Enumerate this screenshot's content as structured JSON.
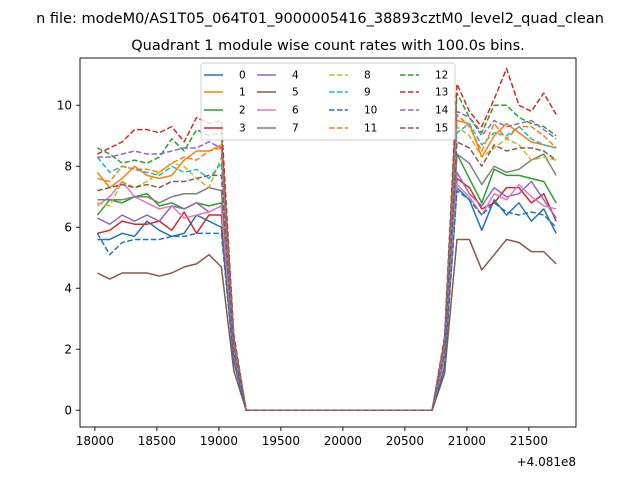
{
  "chart_data": {
    "type": "line",
    "suptitle": "n file: modeM0/AS1T05_064T01_9000005416_38893cztM0_level2_quad_clean",
    "title": "Quadrant 1 module wise count rates with 100.0s bins.",
    "xlabel": "",
    "ylabel": "",
    "x_offset_label": "+4.081e8",
    "xlim": [
      17880,
      21880
    ],
    "ylim": [
      -0.55,
      11.55
    ],
    "x_ticks": [
      18000,
      18500,
      19000,
      19500,
      20000,
      20500,
      21000,
      21500
    ],
    "x_tick_labels": [
      "18000",
      "18500",
      "19000",
      "19500",
      "20000",
      "20500",
      "21000",
      "21500"
    ],
    "y_ticks": [
      0,
      2,
      4,
      6,
      8,
      10
    ],
    "y_tick_labels": [
      "0",
      "2",
      "4",
      "6",
      "8",
      "10"
    ],
    "grid": false,
    "legend_placement": "top-center",
    "legend_ncol": 4,
    "x": [
      18020,
      18120,
      18220,
      18320,
      18420,
      18520,
      18620,
      18720,
      18820,
      18920,
      19020,
      19120,
      19220,
      19320,
      19420,
      19520,
      19620,
      19720,
      19820,
      19920,
      20020,
      20120,
      20220,
      20320,
      20420,
      20520,
      20620,
      20720,
      20820,
      20920,
      21020,
      21120,
      21220,
      21320,
      21420,
      21520,
      21620,
      21720
    ],
    "series": [
      {
        "name": "0",
        "color": "#1f77b4",
        "dash": "solid",
        "values": [
          5.6,
          5.6,
          5.8,
          5.7,
          6.2,
          5.9,
          5.7,
          5.8,
          6.4,
          6.2,
          6.0,
          1.6,
          0,
          0,
          0,
          0,
          0,
          0,
          0,
          0,
          0,
          0,
          0,
          0,
          0,
          0,
          0,
          0,
          1.4,
          7.3,
          6.9,
          5.9,
          6.9,
          6.4,
          6.8,
          6.2,
          6.6,
          5.8
        ]
      },
      {
        "name": "1",
        "color": "#ff7f0e",
        "dash": "solid",
        "values": [
          7.8,
          7.3,
          7.6,
          8.0,
          7.7,
          7.6,
          7.7,
          8.2,
          8.5,
          8.5,
          8.7,
          2.2,
          0,
          0,
          0,
          0,
          0,
          0,
          0,
          0,
          0,
          0,
          0,
          0,
          0,
          0,
          0,
          0,
          2.0,
          9.5,
          9.4,
          8.3,
          9.0,
          9.4,
          9.1,
          8.8,
          8.7,
          8.6
        ]
      },
      {
        "name": "2",
        "color": "#2ca02c",
        "dash": "solid",
        "values": [
          6.4,
          6.9,
          6.8,
          7.0,
          7.1,
          6.7,
          6.8,
          6.6,
          6.8,
          6.7,
          6.8,
          1.8,
          0,
          0,
          0,
          0,
          0,
          0,
          0,
          0,
          0,
          0,
          0,
          0,
          0,
          0,
          0,
          0,
          1.7,
          8.4,
          7.6,
          6.8,
          7.9,
          7.7,
          7.7,
          7.6,
          7.5,
          6.8
        ]
      },
      {
        "name": "3",
        "color": "#d62728",
        "dash": "solid",
        "values": [
          5.8,
          5.9,
          6.2,
          6.1,
          6.1,
          6.2,
          5.9,
          6.5,
          5.8,
          6.4,
          6.4,
          1.7,
          0,
          0,
          0,
          0,
          0,
          0,
          0,
          0,
          0,
          0,
          0,
          0,
          0,
          0,
          0,
          0,
          1.6,
          7.6,
          7.3,
          6.6,
          6.8,
          7.3,
          7.3,
          6.8,
          7.1,
          6.2
        ]
      },
      {
        "name": "4",
        "color": "#9467bd",
        "dash": "solid",
        "values": [
          6.3,
          6.1,
          6.4,
          6.2,
          6.4,
          6.2,
          6.7,
          6.6,
          6.8,
          6.5,
          6.7,
          1.8,
          0,
          0,
          0,
          0,
          0,
          0,
          0,
          0,
          0,
          0,
          0,
          0,
          0,
          0,
          0,
          0,
          1.6,
          7.8,
          7.1,
          6.7,
          7.3,
          7.0,
          7.1,
          7.5,
          6.9,
          6.3
        ]
      },
      {
        "name": "5",
        "color": "#8c564b",
        "dash": "solid",
        "values": [
          4.5,
          4.3,
          4.5,
          4.5,
          4.5,
          4.4,
          4.5,
          4.7,
          4.8,
          5.1,
          4.7,
          1.3,
          0,
          0,
          0,
          0,
          0,
          0,
          0,
          0,
          0,
          0,
          0,
          0,
          0,
          0,
          0,
          0,
          1.2,
          5.6,
          5.6,
          4.6,
          5.1,
          5.6,
          5.5,
          5.2,
          5.2,
          4.8
        ]
      },
      {
        "name": "6",
        "color": "#e377c2",
        "dash": "solid",
        "values": [
          6.7,
          7.0,
          7.5,
          7.0,
          6.8,
          6.6,
          6.7,
          6.3,
          6.4,
          6.5,
          6.7,
          1.8,
          0,
          0,
          0,
          0,
          0,
          0,
          0,
          0,
          0,
          0,
          0,
          0,
          0,
          0,
          0,
          0,
          1.6,
          7.4,
          7.0,
          6.4,
          7.1,
          6.9,
          7.4,
          7.0,
          6.7,
          6.6
        ]
      },
      {
        "name": "7",
        "color": "#7f7f7f",
        "dash": "solid",
        "values": [
          6.9,
          6.9,
          6.9,
          7.0,
          7.0,
          6.8,
          7.0,
          7.1,
          7.1,
          7.3,
          7.2,
          1.9,
          0,
          0,
          0,
          0,
          0,
          0,
          0,
          0,
          0,
          0,
          0,
          0,
          0,
          0,
          0,
          0,
          1.8,
          8.4,
          8.1,
          7.4,
          8.0,
          7.8,
          7.9,
          8.2,
          8.4,
          7.7
        ]
      },
      {
        "name": "8",
        "color": "#bcbd22",
        "dash": "dashed",
        "values": [
          6.8,
          6.7,
          7.5,
          7.3,
          7.5,
          7.8,
          8.1,
          8.0,
          7.6,
          7.3,
          8.3,
          2.2,
          0,
          0,
          0,
          0,
          0,
          0,
          0,
          0,
          0,
          0,
          0,
          0,
          0,
          0,
          0,
          0,
          2.0,
          9.3,
          9.0,
          8.3,
          8.6,
          8.9,
          8.7,
          8.2,
          8.3,
          8.2
        ]
      },
      {
        "name": "9",
        "color": "#17becf",
        "dash": "dashed",
        "values": [
          8.3,
          7.8,
          8.0,
          7.9,
          7.8,
          7.7,
          8.0,
          7.8,
          7.9,
          7.6,
          8.1,
          2.1,
          0,
          0,
          0,
          0,
          0,
          0,
          0,
          0,
          0,
          0,
          0,
          0,
          0,
          0,
          0,
          0,
          1.9,
          9.1,
          9.4,
          8.7,
          9.1,
          9.0,
          9.3,
          8.9,
          8.7,
          8.6
        ]
      },
      {
        "name": "10",
        "color": "#1f77b4",
        "dash": "dashed",
        "values": [
          5.8,
          5.1,
          5.5,
          5.6,
          5.6,
          5.6,
          5.7,
          5.7,
          5.8,
          5.8,
          5.8,
          1.6,
          0,
          0,
          0,
          0,
          0,
          0,
          0,
          0,
          0,
          0,
          0,
          0,
          0,
          0,
          0,
          0,
          1.4,
          7.2,
          6.9,
          6.4,
          6.8,
          6.5,
          6.4,
          6.5,
          6.4,
          6.0
        ]
      },
      {
        "name": "11",
        "color": "#ff7f0e",
        "dash": "dashed",
        "values": [
          7.6,
          7.5,
          8.0,
          7.9,
          7.9,
          7.8,
          8.1,
          8.3,
          8.2,
          8.5,
          8.6,
          2.3,
          0,
          0,
          0,
          0,
          0,
          0,
          0,
          0,
          0,
          0,
          0,
          0,
          0,
          0,
          0,
          0,
          2.1,
          9.7,
          9.3,
          8.5,
          9.4,
          8.9,
          9.3,
          9.3,
          9.0,
          8.6
        ]
      },
      {
        "name": "12",
        "color": "#2ca02c",
        "dash": "dashed",
        "values": [
          8.6,
          8.4,
          8.1,
          8.2,
          8.1,
          8.3,
          8.9,
          8.5,
          9.2,
          9.0,
          9.1,
          2.4,
          0,
          0,
          0,
          0,
          0,
          0,
          0,
          0,
          0,
          0,
          0,
          0,
          0,
          0,
          0,
          0,
          2.3,
          10.4,
          9.6,
          9.1,
          10.0,
          10.0,
          9.6,
          9.4,
          9.3,
          9.0
        ]
      },
      {
        "name": "13",
        "color": "#d62728",
        "dash": "dashed",
        "values": [
          8.4,
          8.6,
          8.8,
          9.2,
          9.2,
          9.1,
          9.3,
          8.8,
          9.6,
          9.4,
          9.5,
          2.5,
          0,
          0,
          0,
          0,
          0,
          0,
          0,
          0,
          0,
          0,
          0,
          0,
          0,
          0,
          0,
          0,
          2.4,
          10.7,
          9.8,
          9.3,
          10.2,
          11.2,
          10.0,
          9.8,
          10.4,
          9.7
        ]
      },
      {
        "name": "14",
        "color": "#9467bd",
        "dash": "dashed",
        "values": [
          8.3,
          8.3,
          8.4,
          8.5,
          8.4,
          8.4,
          8.5,
          8.6,
          8.6,
          8.8,
          8.6,
          2.3,
          0,
          0,
          0,
          0,
          0,
          0,
          0,
          0,
          0,
          0,
          0,
          0,
          0,
          0,
          0,
          0,
          2.2,
          9.8,
          9.6,
          9.0,
          9.5,
          9.3,
          9.4,
          9.5,
          9.2,
          8.9
        ]
      },
      {
        "name": "15",
        "color": "#8c564b",
        "dash": "dashed",
        "values": [
          7.2,
          7.3,
          7.4,
          7.3,
          7.4,
          7.3,
          7.5,
          7.5,
          7.6,
          7.7,
          7.7,
          2.0,
          0,
          0,
          0,
          0,
          0,
          0,
          0,
          0,
          0,
          0,
          0,
          0,
          0,
          0,
          0,
          0,
          1.9,
          8.8,
          8.6,
          8.0,
          8.7,
          8.5,
          8.6,
          8.6,
          8.5,
          8.2
        ]
      }
    ]
  }
}
